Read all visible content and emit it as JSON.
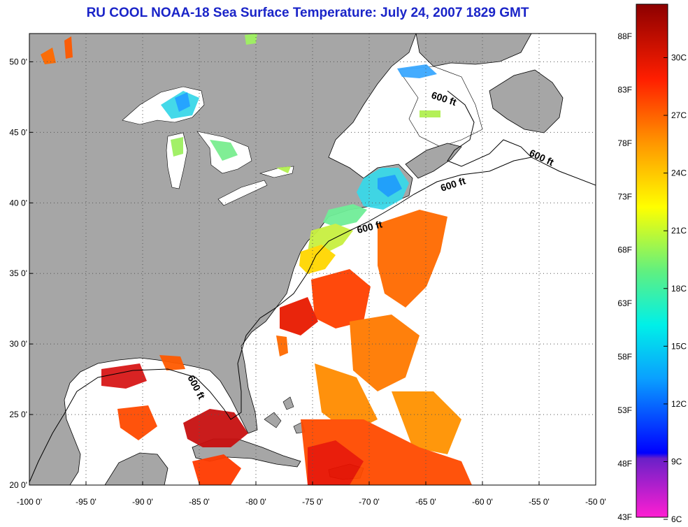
{
  "title": "RU COOL  NOAA-18  Sea Surface Temperature:  July 24, 2007 1829 GMT",
  "map": {
    "lon_range": [
      -100,
      -50
    ],
    "lat_range": [
      20,
      52
    ],
    "lon_ticks": [
      {
        "value": -100,
        "label": "-100 0'"
      },
      {
        "value": -95,
        "label": "-95 0'"
      },
      {
        "value": -90,
        "label": "-90 0'"
      },
      {
        "value": -85,
        "label": "-85 0'"
      },
      {
        "value": -80,
        "label": "-80 0'"
      },
      {
        "value": -75,
        "label": "-75 0'"
      },
      {
        "value": -70,
        "label": "-70 0'"
      },
      {
        "value": -65,
        "label": "-65 0'"
      },
      {
        "value": -60,
        "label": "-60 0'"
      },
      {
        "value": -55,
        "label": "-55 0'"
      },
      {
        "value": -50,
        "label": "-50 0'"
      }
    ],
    "lat_ticks": [
      {
        "value": 20,
        "label": "20 0'"
      },
      {
        "value": 25,
        "label": "25 0'"
      },
      {
        "value": 30,
        "label": "30 0'"
      },
      {
        "value": 35,
        "label": "35 0'"
      },
      {
        "value": 40,
        "label": "40 0'"
      },
      {
        "value": 45,
        "label": "45 0'"
      },
      {
        "value": 50,
        "label": "50 0'"
      }
    ],
    "contour_label": "600 ft",
    "colors": {
      "land": "#a6a6a6",
      "ocean": "#ffffff",
      "grid": "#555555",
      "coast": "#000000"
    }
  },
  "colorbar": {
    "range_f": [
      43,
      91
    ],
    "fahrenheit_labels": [
      "88F",
      "83F",
      "78F",
      "73F",
      "68F",
      "63F",
      "58F",
      "53F",
      "48F",
      "43F"
    ],
    "celsius_labels": [
      "30C",
      "27C",
      "24C",
      "21C",
      "18C",
      "15C",
      "12C",
      "9C",
      "6C"
    ],
    "stops": [
      {
        "f": 43,
        "color": "#ff1ed2"
      },
      {
        "f": 48.5,
        "color": "#6a20c8"
      },
      {
        "f": 49,
        "color": "#0000ff"
      },
      {
        "f": 56,
        "color": "#0aa0ff"
      },
      {
        "f": 61,
        "color": "#00f0e8"
      },
      {
        "f": 66,
        "color": "#60f080"
      },
      {
        "f": 72,
        "color": "#ffff00"
      },
      {
        "f": 78,
        "color": "#ff9600"
      },
      {
        "f": 84,
        "color": "#ff1e00"
      },
      {
        "f": 91,
        "color": "#8c0000"
      }
    ]
  }
}
